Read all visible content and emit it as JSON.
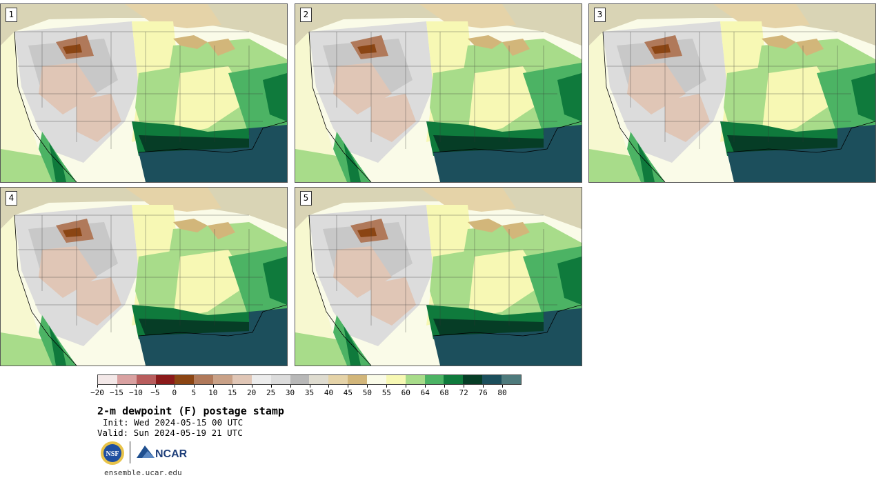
{
  "panels": [
    {
      "number": "1"
    },
    {
      "number": "2"
    },
    {
      "number": "3"
    },
    {
      "number": "4"
    },
    {
      "number": "5"
    }
  ],
  "colorbar": {
    "colors": [
      "#f3e8e8",
      "#d9a1a1",
      "#b85d5d",
      "#8b1a1a",
      "#8b4513",
      "#b0795a",
      "#c9a187",
      "#e0c6b6",
      "#ececec",
      "#dcdcdc",
      "#b8b8b8",
      "#dfdcd0",
      "#e5d3a8",
      "#d2b67a",
      "#fafbe8",
      "#f7f8b4",
      "#a8dc8a",
      "#4cb364",
      "#0f7a3c",
      "#063d26",
      "#1c4f5c",
      "#4e7a7c"
    ],
    "tick_labels": [
      "−20",
      "−15",
      "−10",
      "−5",
      "0",
      "5",
      "10",
      "15",
      "20",
      "25",
      "30",
      "35",
      "40",
      "45",
      "50",
      "55",
      "60",
      "64",
      "68",
      "72",
      "76",
      "80"
    ]
  },
  "title": "2-m dewpoint (F) postage stamp",
  "init": "Init: Wed 2024-05-15 00 UTC",
  "valid": "Valid: Sun 2024-05-19 21 UTC",
  "logos": {
    "nsf_text": "NSF",
    "ncar_text": "NCAR"
  },
  "site": "ensemble.ucar.edu"
}
